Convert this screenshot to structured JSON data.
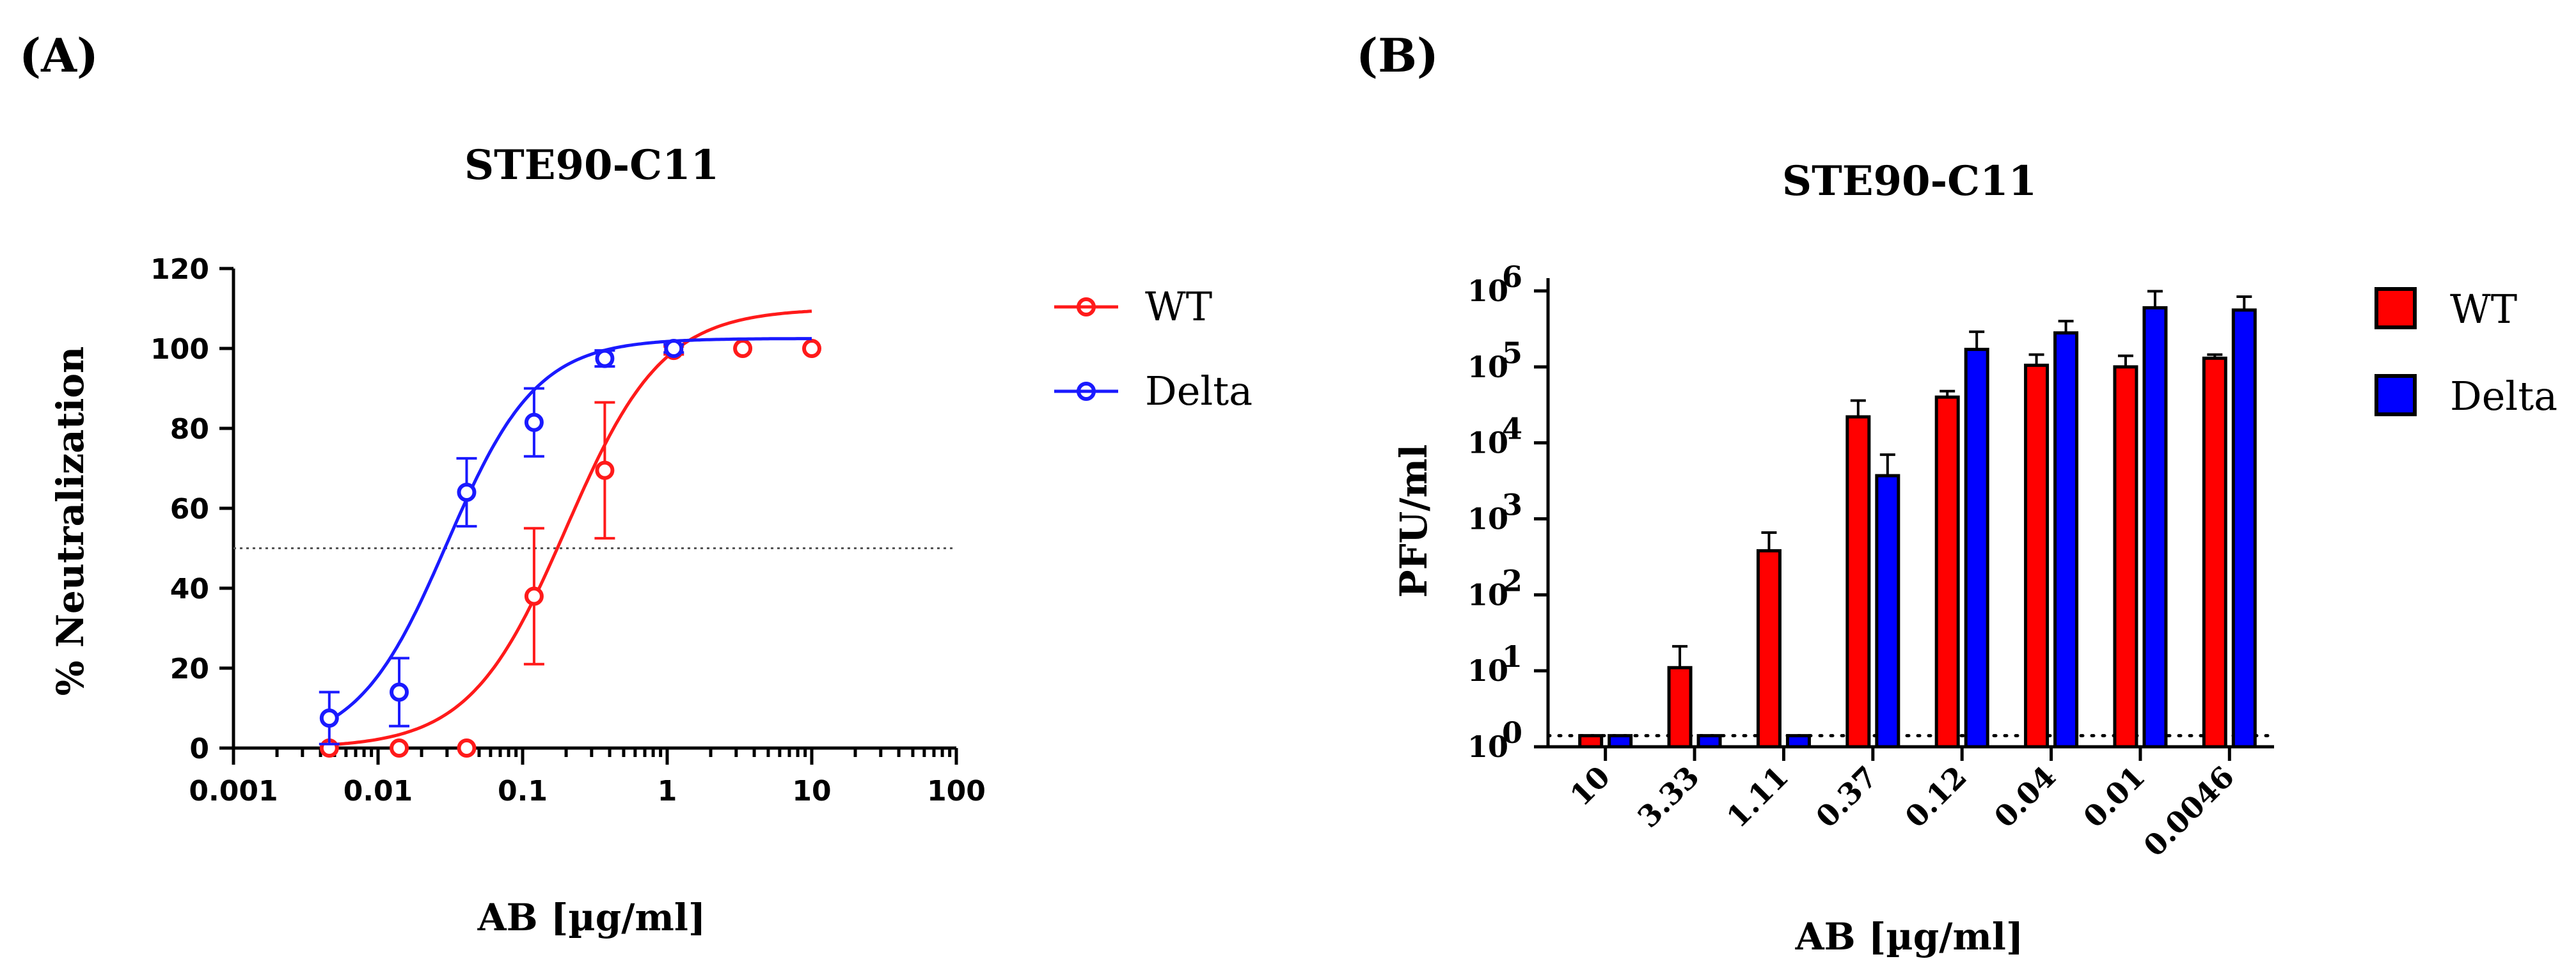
{
  "panels": {
    "a_label": "(A)",
    "b_label": "(B)"
  },
  "colors": {
    "wt": "#ff1a1a",
    "delta": "#1a1aff",
    "wt_bar": "#ff0000",
    "delta_bar": "#0000ff"
  },
  "chart_data": [
    {
      "type": "scatter",
      "title": "STE90-C11",
      "xlabel": "AB  [µg/ml]",
      "ylabel": "% Neutralization",
      "xscale": "log",
      "xlim": [
        0.001,
        100
      ],
      "ylim": [
        0,
        120
      ],
      "xticks": [
        0.001,
        0.01,
        0.1,
        1,
        10,
        100
      ],
      "xtick_labels": [
        "0.001",
        "0.01",
        "0.1",
        "1",
        "10",
        "100"
      ],
      "yticks": [
        0,
        20,
        40,
        60,
        80,
        100,
        120
      ],
      "ytick_labels": [
        "0",
        "20",
        "40",
        "60",
        "80",
        "100",
        "120"
      ],
      "reference_line_y": 50,
      "legend_position": "right",
      "series": [
        {
          "name": "WT",
          "x": [
            0.0046,
            0.014,
            0.041,
            0.12,
            0.37,
            1.11,
            3.33,
            10
          ],
          "y": [
            0,
            0,
            0,
            38,
            69.5,
            99.5,
            100,
            100
          ],
          "err": [
            0,
            0,
            0,
            17,
            17,
            1,
            0,
            0
          ],
          "fit": {
            "bottom": 0,
            "top": 110,
            "ec50": 0.2,
            "hill": 1.3
          }
        },
        {
          "name": "Delta",
          "x": [
            0.0046,
            0.014,
            0.041,
            0.12,
            0.37,
            1.11
          ],
          "y": [
            7.5,
            14,
            64,
            81.5,
            97.5,
            100
          ],
          "err": [
            6.5,
            8.5,
            8.5,
            8.5,
            2,
            1
          ],
          "fit": {
            "bottom": 0,
            "top": 102.5,
            "ec50": 0.03,
            "hill": 1.4
          }
        }
      ]
    },
    {
      "type": "bar",
      "title": "STE90-C11",
      "xlabel": "AB  [µg/ml]",
      "ylabel": "PFU/ml",
      "yscale": "log",
      "ylim": [
        1,
        1000000
      ],
      "yticks_base": "10",
      "yticks_exp": [
        "0",
        "1",
        "2",
        "3",
        "4",
        "5",
        "6"
      ],
      "detection_limit": 1.4,
      "legend_position": "right",
      "categories": [
        "10",
        "3.33",
        "1.11",
        "0.37",
        "0.12",
        "0.04",
        "0.01",
        "0.0046"
      ],
      "series": [
        {
          "name": "WT",
          "values": [
            1.4,
            11,
            380,
            22000,
            40000,
            105000,
            100000,
            130000
          ],
          "err_upper": [
            1.4,
            21,
            660,
            36000,
            48000,
            145000,
            140000,
            145000
          ]
        },
        {
          "name": "Delta",
          "values": [
            1.4,
            1.4,
            1.4,
            3700,
            170000,
            280000,
            600000,
            560000
          ],
          "err_upper": [
            1.4,
            1.4,
            1.4,
            7000,
            290000,
            400000,
            990000,
            840000
          ]
        }
      ]
    }
  ]
}
